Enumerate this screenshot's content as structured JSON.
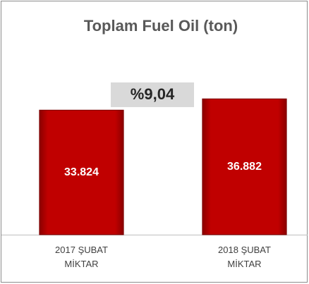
{
  "chart_data": {
    "type": "bar",
    "title": "Toplam  Fuel Oil (ton)",
    "annotation": "%9,04",
    "categories": [
      "2017 ŞUBAT\nMİKTAR",
      "2018 ŞUBAT\nMİKTAR"
    ],
    "values": [
      33824,
      36882
    ],
    "value_labels": [
      "33.824",
      "36.882"
    ],
    "color": "#c00000",
    "ylim": [
      0,
      40000
    ]
  }
}
